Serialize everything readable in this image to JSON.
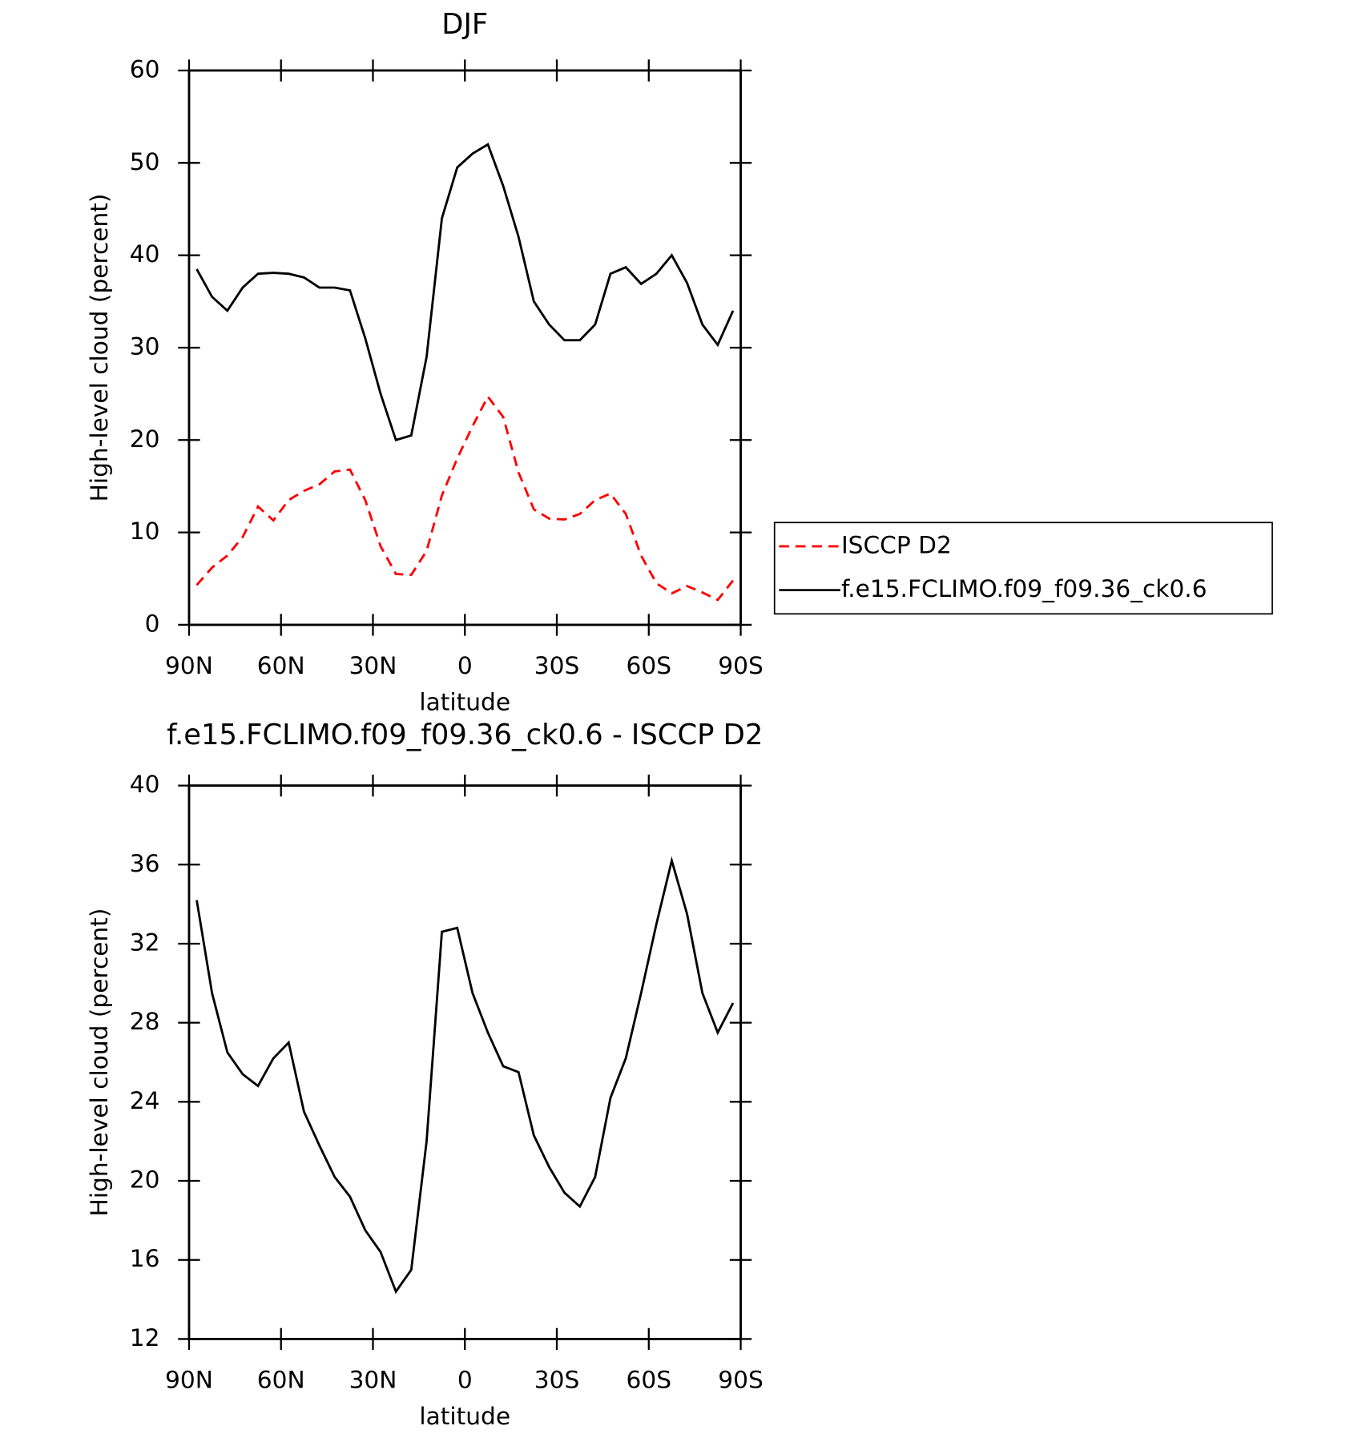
{
  "chart_data": [
    {
      "type": "line",
      "title": "DJF",
      "xlabel": "latitude",
      "ylabel": "High-level cloud (percent)",
      "x": [
        87.5,
        82.5,
        77.5,
        72.5,
        67.5,
        62.5,
        57.5,
        52.5,
        47.5,
        42.5,
        37.5,
        32.5,
        27.5,
        22.5,
        17.5,
        12.5,
        7.5,
        2.5,
        -2.5,
        -7.5,
        -12.5,
        -17.5,
        -22.5,
        -27.5,
        -32.5,
        -37.5,
        -42.5,
        -47.5,
        -52.5,
        -57.5,
        -62.5,
        -67.5,
        -72.5,
        -77.5,
        -82.5,
        -87.5
      ],
      "xlim": [
        90,
        -90
      ],
      "xticks": [
        {
          "value": 90,
          "label": "90N"
        },
        {
          "value": 60,
          "label": "60N"
        },
        {
          "value": 30,
          "label": "30N"
        },
        0,
        {
          "value": -30,
          "label": "30S"
        },
        {
          "value": -60,
          "label": "60S"
        },
        {
          "value": -90,
          "label": "90S"
        }
      ],
      "ylim": [
        0,
        60
      ],
      "yticks": [
        0,
        10,
        20,
        30,
        40,
        50,
        60
      ],
      "legend": "right",
      "series": [
        {
          "name": "ISCCP D2",
          "color": "#ff0000",
          "dashed": true,
          "values": [
            4.3,
            6.2,
            7.5,
            9.5,
            12.8,
            11.3,
            13.5,
            14.5,
            15.2,
            16.6,
            16.8,
            13.5,
            8.5,
            5.5,
            5.4,
            8,
            14,
            18,
            21.5,
            24.7,
            22.5,
            16.5,
            12.5,
            11.5,
            11.4,
            12,
            13.5,
            14.2,
            12,
            7.5,
            4.5,
            3.4,
            4.2,
            3.5,
            2.7,
            4.8
          ]
        },
        {
          "name": "f.e15.FCLIMO.f09_f09.36_ck0.6",
          "color": "#000000",
          "dashed": false,
          "values": [
            38.5,
            35.5,
            34,
            36.5,
            38,
            38.1,
            38,
            37.6,
            36.5,
            36.5,
            36.2,
            31,
            25,
            20,
            20.5,
            29,
            44,
            49.5,
            51,
            52,
            47.5,
            42,
            35,
            32.5,
            30.8,
            30.8,
            32.5,
            38,
            38.7,
            36.9,
            38,
            40,
            37,
            32.5,
            30.3,
            34
          ]
        }
      ]
    },
    {
      "type": "line",
      "title": "f.e15.FCLIMO.f09_f09.36_ck0.6 - ISCCP D2",
      "xlabel": "latitude",
      "ylabel": "High-level cloud (percent)",
      "x": [
        87.5,
        82.5,
        77.5,
        72.5,
        67.5,
        62.5,
        57.5,
        52.5,
        47.5,
        42.5,
        37.5,
        32.5,
        27.5,
        22.5,
        17.5,
        12.5,
        7.5,
        2.5,
        -2.5,
        -7.5,
        -12.5,
        -17.5,
        -22.5,
        -27.5,
        -32.5,
        -37.5,
        -42.5,
        -47.5,
        -52.5,
        -57.5,
        -62.5,
        -67.5,
        -72.5,
        -77.5,
        -82.5,
        -87.5
      ],
      "xlim": [
        90,
        -90
      ],
      "xticks": [
        {
          "value": 90,
          "label": "90N"
        },
        {
          "value": 60,
          "label": "60N"
        },
        {
          "value": 30,
          "label": "30N"
        },
        0,
        {
          "value": -30,
          "label": "30S"
        },
        {
          "value": -60,
          "label": "60S"
        },
        {
          "value": -90,
          "label": "90S"
        }
      ],
      "ylim": [
        12,
        40
      ],
      "yticks": [
        12,
        16,
        20,
        24,
        28,
        32,
        36,
        40
      ],
      "series": [
        {
          "color": "#000000",
          "dashed": false,
          "values": [
            34.2,
            29.5,
            26.5,
            25.4,
            24.8,
            26.2,
            27,
            23.5,
            21.8,
            20.2,
            19.2,
            17.5,
            16.4,
            14.4,
            15.5,
            22,
            32.6,
            32.8,
            29.5,
            27.5,
            25.8,
            25.5,
            22.3,
            20.7,
            19.4,
            18.7,
            20.2,
            24.2,
            26.2,
            29.5,
            33,
            36.2,
            33.5,
            29.5,
            27.5,
            29
          ]
        }
      ]
    }
  ]
}
